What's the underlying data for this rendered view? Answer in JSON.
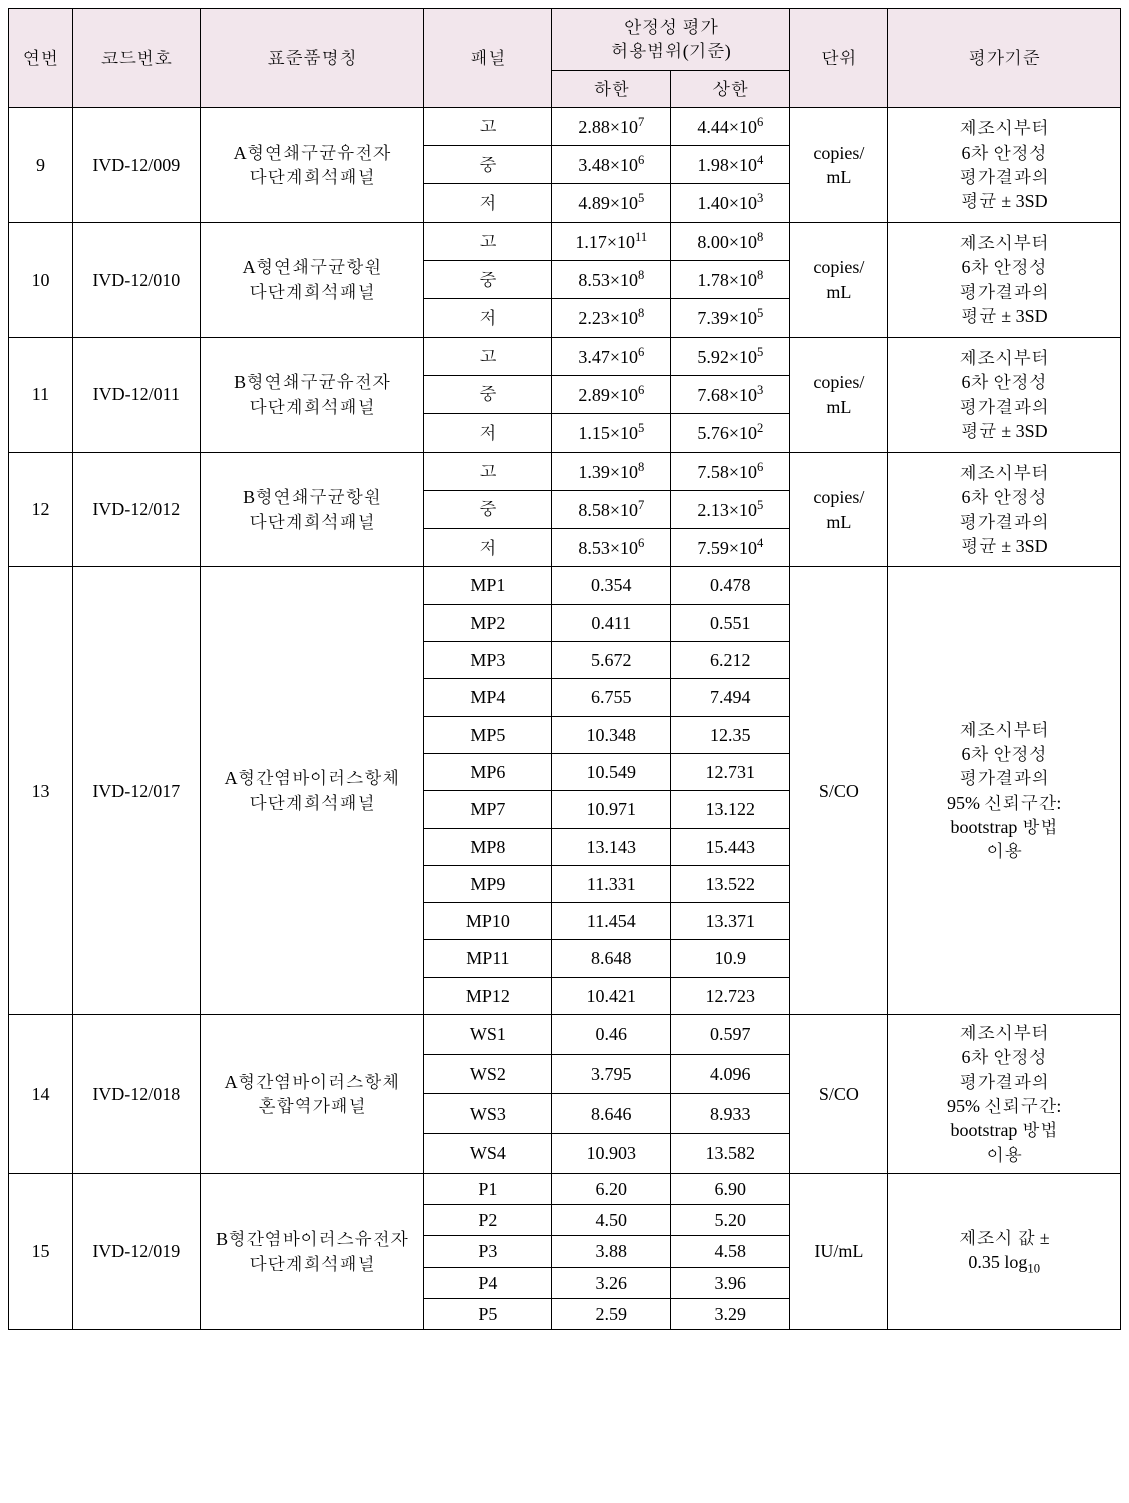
{
  "header": {
    "col_no": "연번",
    "col_code": "코드번호",
    "col_name": "표준품명칭",
    "col_panel": "패널",
    "col_stability": "안정성  평가\n허용범위(기준)",
    "col_lower": "하한",
    "col_upper": "상한",
    "col_unit": "단위",
    "col_criteria": "평가기준"
  },
  "criteria": {
    "sd3": "제조시부터\n6차 안정성\n평가결과의\n평균 ± 3SD",
    "ci95": "제조시부터\n6차 안정성\n평가결과의\n95% 신뢰구간:\nbootstrap 방법\n이용",
    "log": "제조시 값 ±\n0.35 log"
  },
  "rows": [
    {
      "no": "9",
      "code": "IVD-12/009",
      "name": "A형연쇄구균유전자\n다단계희석패널",
      "unit": "copies/\nmL",
      "criteria": "sd3",
      "sub": [
        {
          "panel": "고",
          "lo_m": "2.88",
          "lo_e": "7",
          "hi_m": "4.44",
          "hi_e": "6"
        },
        {
          "panel": "중",
          "lo_m": "3.48",
          "lo_e": "6",
          "hi_m": "1.98",
          "hi_e": "4"
        },
        {
          "panel": "저",
          "lo_m": "4.89",
          "lo_e": "5",
          "hi_m": "1.40",
          "hi_e": "3"
        }
      ]
    },
    {
      "no": "10",
      "code": "IVD-12/010",
      "name": "A형연쇄구균항원\n다단계희석패널",
      "unit": "copies/\nmL",
      "criteria": "sd3",
      "sub": [
        {
          "panel": "고",
          "lo_m": "1.17",
          "lo_e": "11",
          "hi_m": "8.00",
          "hi_e": "8"
        },
        {
          "panel": "중",
          "lo_m": "8.53",
          "lo_e": "8",
          "hi_m": "1.78",
          "hi_e": "8"
        },
        {
          "panel": "저",
          "lo_m": "2.23",
          "lo_e": "8",
          "hi_m": "7.39",
          "hi_e": "5"
        }
      ]
    },
    {
      "no": "11",
      "code": "IVD-12/011",
      "name": "B형연쇄구균유전자\n다단계희석패널",
      "unit": "copies/\nmL",
      "criteria": "sd3",
      "sub": [
        {
          "panel": "고",
          "lo_m": "3.47",
          "lo_e": "6",
          "hi_m": "5.92",
          "hi_e": "5"
        },
        {
          "panel": "중",
          "lo_m": "2.89",
          "lo_e": "6",
          "hi_m": "7.68",
          "hi_e": "3"
        },
        {
          "panel": "저",
          "lo_m": "1.15",
          "lo_e": "5",
          "hi_m": "5.76",
          "hi_e": "2"
        }
      ]
    },
    {
      "no": "12",
      "code": "IVD-12/012",
      "name": "B형연쇄구균항원\n다단계희석패널",
      "unit": "copies/\nmL",
      "criteria": "sd3",
      "sub": [
        {
          "panel": "고",
          "lo_m": "1.39",
          "lo_e": "8",
          "hi_m": "7.58",
          "hi_e": "6"
        },
        {
          "panel": "중",
          "lo_m": "8.58",
          "lo_e": "7",
          "hi_m": "2.13",
          "hi_e": "5"
        },
        {
          "panel": "저",
          "lo_m": "8.53",
          "lo_e": "6",
          "hi_m": "7.59",
          "hi_e": "4"
        }
      ]
    },
    {
      "no": "13",
      "code": "IVD-12/017",
      "name": "A형간염바이러스항체\n다단계희석패널",
      "unit": "S/CO",
      "criteria": "ci95",
      "sub": [
        {
          "panel": "MP1",
          "lo": "0.354",
          "hi": "0.478"
        },
        {
          "panel": "MP2",
          "lo": "0.411",
          "hi": "0.551"
        },
        {
          "panel": "MP3",
          "lo": "5.672",
          "hi": "6.212"
        },
        {
          "panel": "MP4",
          "lo": "6.755",
          "hi": "7.494"
        },
        {
          "panel": "MP5",
          "lo": "10.348",
          "hi": "12.35"
        },
        {
          "panel": "MP6",
          "lo": "10.549",
          "hi": "12.731"
        },
        {
          "panel": "MP7",
          "lo": "10.971",
          "hi": "13.122"
        },
        {
          "panel": "MP8",
          "lo": "13.143",
          "hi": "15.443"
        },
        {
          "panel": "MP9",
          "lo": "11.331",
          "hi": "13.522"
        },
        {
          "panel": "MP10",
          "lo": "11.454",
          "hi": "13.371"
        },
        {
          "panel": "MP11",
          "lo": "8.648",
          "hi": "10.9"
        },
        {
          "panel": "MP12",
          "lo": "10.421",
          "hi": "12.723"
        }
      ]
    },
    {
      "no": "14",
      "code": "IVD-12/018",
      "name": "A형간염바이러스항체\n혼합역가패널",
      "unit": "S/CO",
      "criteria": "ci95",
      "sub": [
        {
          "panel": "WS1",
          "lo": "0.46",
          "hi": "0.597"
        },
        {
          "panel": "WS2",
          "lo": "3.795",
          "hi": "4.096"
        },
        {
          "panel": "WS3",
          "lo": "8.646",
          "hi": "8.933"
        },
        {
          "panel": "WS4",
          "lo": "10.903",
          "hi": "13.582"
        }
      ]
    },
    {
      "no": "15",
      "code": "IVD-12/019",
      "name": "B형간염바이러스유전자\n다단계희석패널",
      "unit": "IU/mL",
      "criteria": "log",
      "narrow": true,
      "sub": [
        {
          "panel": "P1",
          "lo": "6.20",
          "hi": "6.90"
        },
        {
          "panel": "P2",
          "lo": "4.50",
          "hi": "5.20"
        },
        {
          "panel": "P3",
          "lo": "3.88",
          "hi": "4.58"
        },
        {
          "panel": "P4",
          "lo": "3.26",
          "hi": "3.96"
        },
        {
          "panel": "P5",
          "lo": "2.59",
          "hi": "3.29"
        }
      ]
    }
  ],
  "log_sub": "10"
}
